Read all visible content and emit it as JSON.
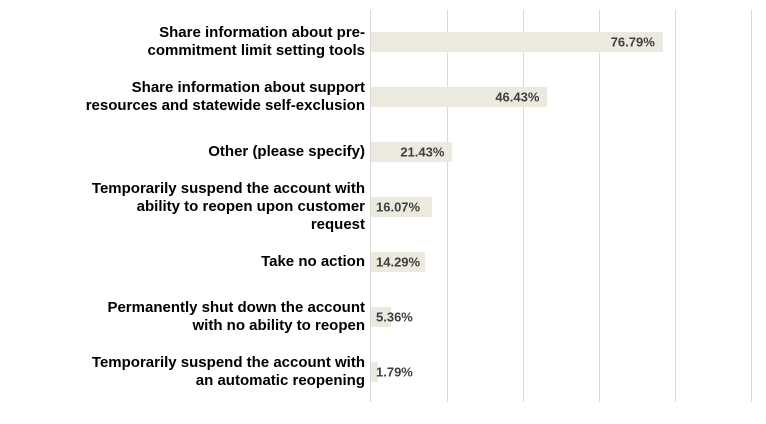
{
  "chart_data": {
    "type": "bar",
    "orientation": "horizontal",
    "title": "",
    "xlabel": "",
    "ylabel": "",
    "xlim": [
      0,
      100
    ],
    "grid": "vertical",
    "gridline_positions_percent": [
      20,
      40,
      60,
      80,
      100
    ],
    "legend": "none",
    "axis_tick_labels_visible": false,
    "colors": {
      "bar_fill": "#ECE9DF",
      "gridline": "#D9D9D9",
      "axis_line": "#D9D9D9",
      "category_label": "#000000",
      "value_label": "#3F3F3F",
      "background": "#FFFFFF"
    },
    "categories": [
      "Share information about pre-commitment limit setting tools",
      "Share information about support resources and statewide self-exclusion",
      "Other (please specify)",
      "Temporarily suspend the account with ability to reopen upon customer request",
      "Take no action",
      "Permanently shut down the account with no ability to reopen",
      "Temporarily suspend the account with an automatic reopening"
    ],
    "values": [
      76.79,
      46.43,
      21.43,
      16.07,
      14.29,
      5.36,
      1.79
    ],
    "rows": [
      {
        "label_lines": [
          "Share information about pre-",
          "commitment limit setting tools"
        ],
        "value": 76.79,
        "value_label": "76.79%"
      },
      {
        "label_lines": [
          "Share information about support",
          "resources and statewide self-exclusion"
        ],
        "value": 46.43,
        "value_label": "46.43%"
      },
      {
        "label_lines": [
          "Other (please specify)"
        ],
        "value": 21.43,
        "value_label": "21.43%"
      },
      {
        "label_lines": [
          "Temporarily suspend the account with",
          "ability to reopen upon customer",
          "request"
        ],
        "value": 16.07,
        "value_label": "16.07%"
      },
      {
        "label_lines": [
          "Take no action"
        ],
        "value": 14.29,
        "value_label": "14.29%"
      },
      {
        "label_lines": [
          "Permanently shut down the account",
          "with no ability to reopen"
        ],
        "value": 5.36,
        "value_label": "5.36%"
      },
      {
        "label_lines": [
          "Temporarily suspend the account with",
          "an automatic reopening"
        ],
        "value": 1.79,
        "value_label": "1.79%"
      }
    ]
  },
  "layout_constants": {
    "note": "geometry only rendered by template script"
  }
}
